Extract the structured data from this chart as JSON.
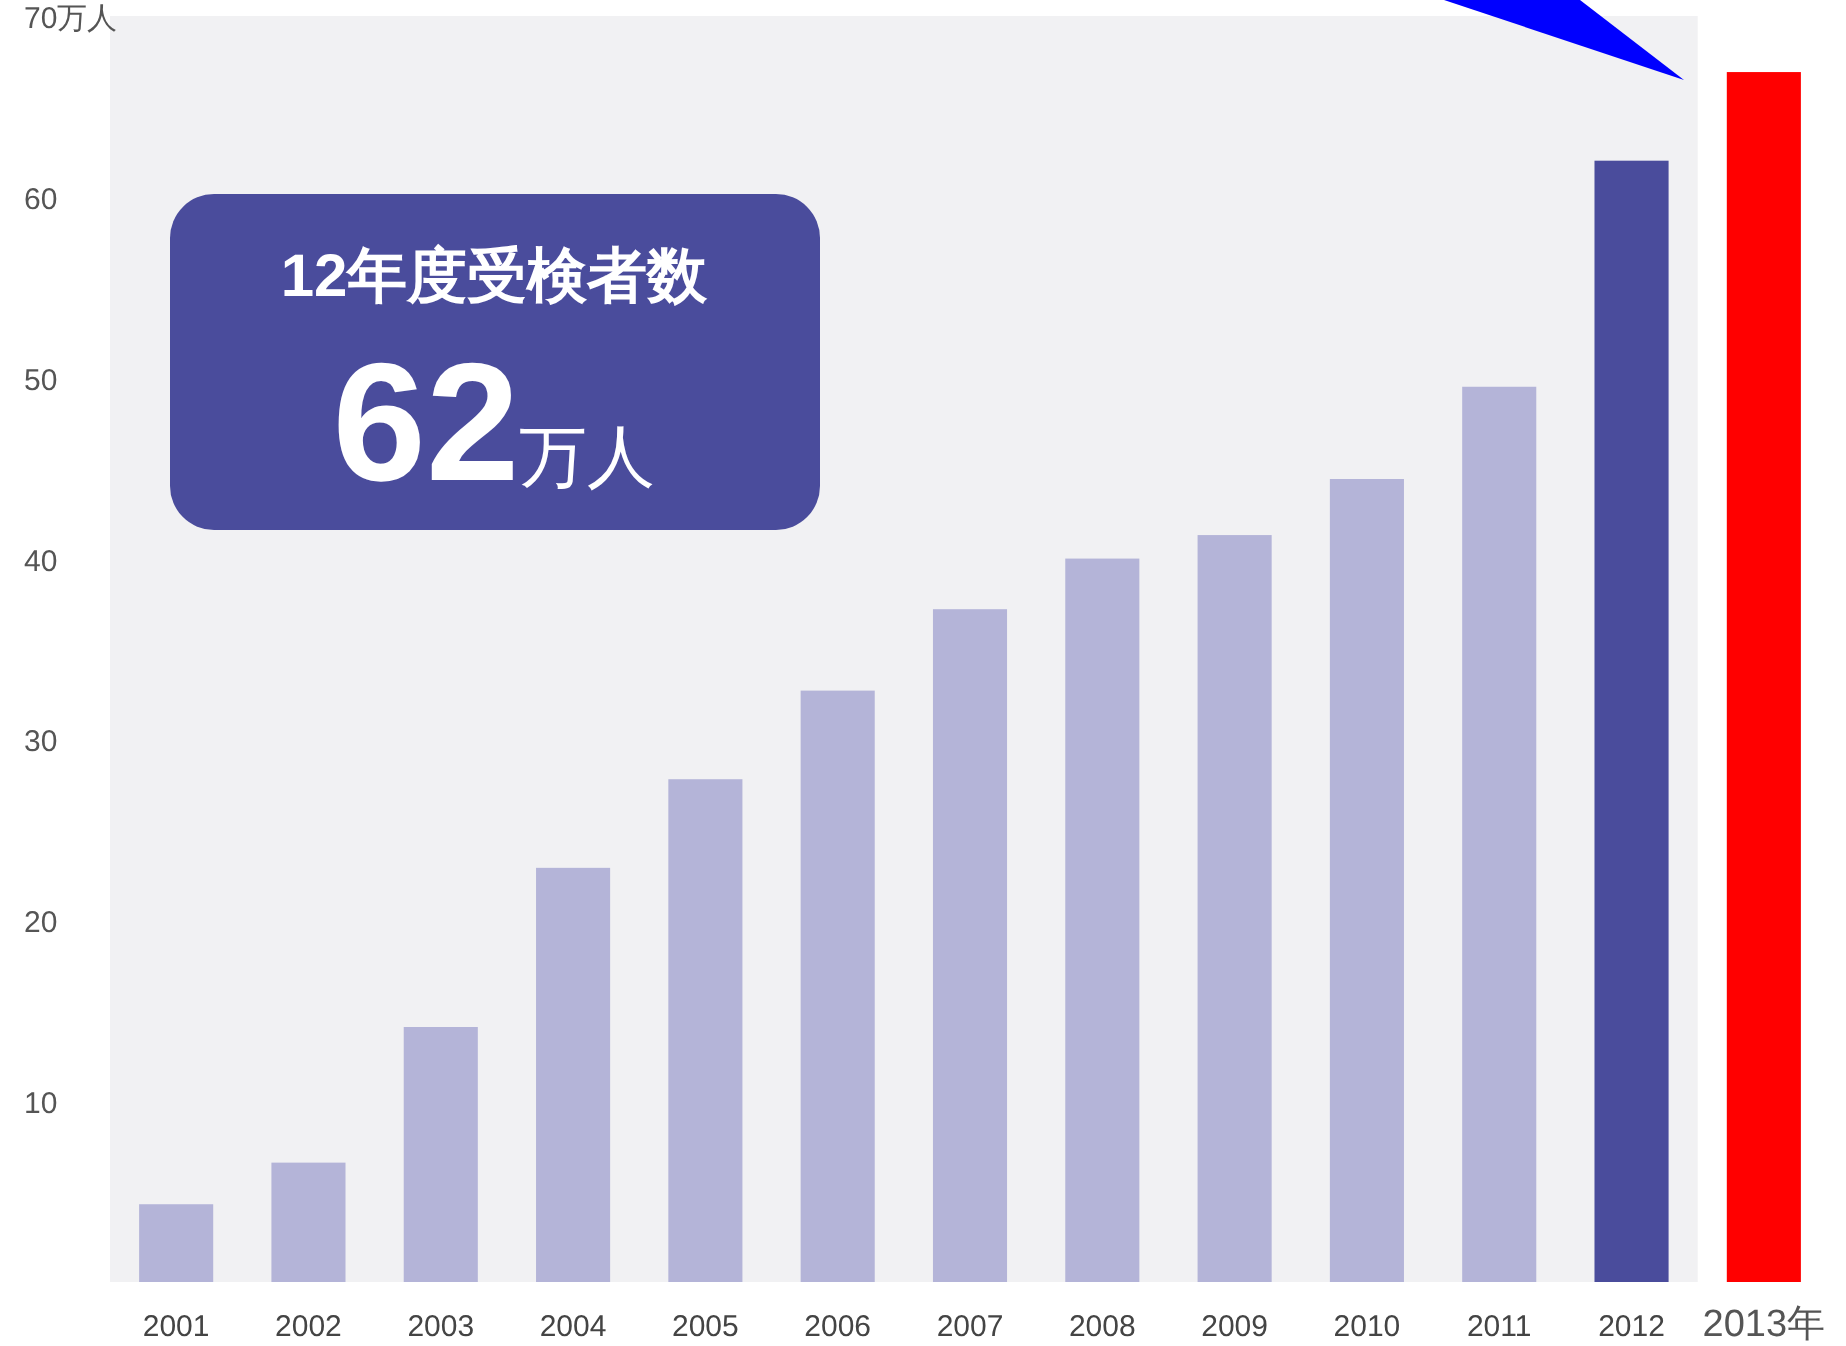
{
  "chart_data": {
    "type": "bar",
    "categories": [
      "2001",
      "2002",
      "2003",
      "2004",
      "2005",
      "2006",
      "2007",
      "2008",
      "2009",
      "2010",
      "2011",
      "2012",
      "2013年"
    ],
    "values": [
      4.3,
      6.6,
      14.1,
      22.9,
      27.8,
      32.7,
      37.2,
      40.0,
      41.3,
      44.4,
      49.5,
      62,
      66.9
    ],
    "colors": [
      "#b4b4d8",
      "#b4b4d8",
      "#b4b4d8",
      "#b4b4d8",
      "#b4b4d8",
      "#b4b4d8",
      "#b4b4d8",
      "#b4b4d8",
      "#b4b4d8",
      "#b4b4d8",
      "#b4b4d8",
      "#4a4c9c",
      "#ff0000"
    ],
    "ylim": [
      0,
      70
    ],
    "yticks": [
      10,
      20,
      30,
      40,
      50,
      60,
      {
        "value": 70,
        "label": "70万人"
      }
    ],
    "annotations": [
      "12年度受検者数",
      "62万人"
    ]
  }
}
